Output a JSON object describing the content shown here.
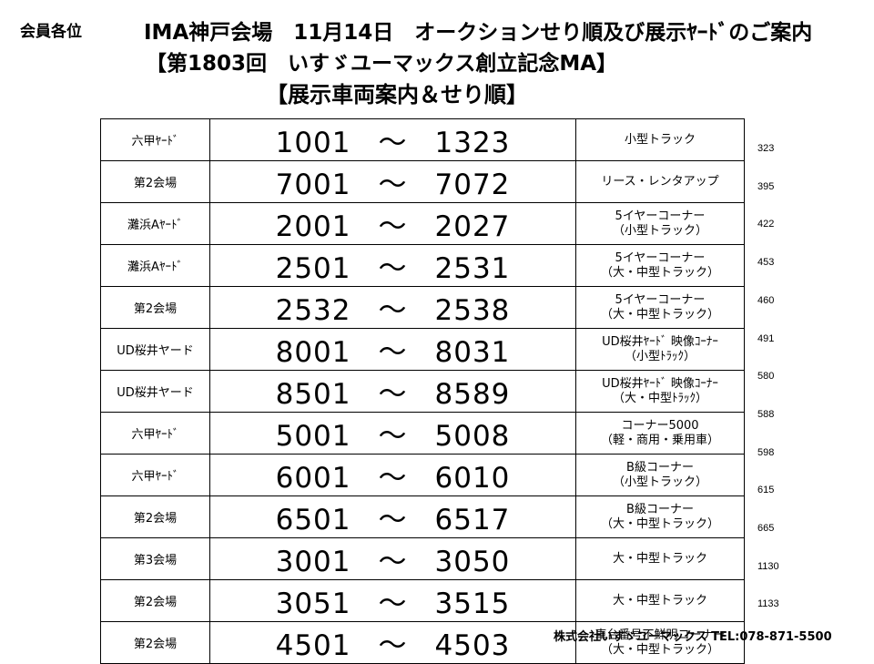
{
  "header": {
    "addressee": "会員各位",
    "title_line1": "IMA神戸会場　11月14日　オークションせり順及び展示ﾔｰﾄﾞのご案内",
    "title_line2": "【第1803回　いすゞユーマックス創立記念MA】",
    "title_line3": "【展示車両案内＆せり順】"
  },
  "range_separator": "～",
  "rows": [
    {
      "location": "六甲ﾔｰﾄﾞ",
      "from": "1001",
      "to": "1323",
      "category": [
        "小型トラック"
      ],
      "count": "323"
    },
    {
      "location": "第2会場",
      "from": "7001",
      "to": "7072",
      "category": [
        "リース・レンタアップ"
      ],
      "count": "395"
    },
    {
      "location": "灘浜Aﾔｰﾄﾞ",
      "from": "2001",
      "to": "2027",
      "category": [
        "5イヤーコーナー",
        "（小型トラック）"
      ],
      "count": "422"
    },
    {
      "location": "灘浜Aﾔｰﾄﾞ",
      "from": "2501",
      "to": "2531",
      "category": [
        "5イヤーコーナー",
        "（大・中型トラック）"
      ],
      "count": "453"
    },
    {
      "location": "第2会場",
      "from": "2532",
      "to": "2538",
      "category": [
        "5イヤーコーナー",
        "（大・中型トラック）"
      ],
      "count": "460"
    },
    {
      "location": "UD桜井ヤード",
      "from": "8001",
      "to": "8031",
      "category": [
        "UD桜井ﾔｰﾄﾞ 映像ｺｰﾅｰ",
        "（小型ﾄﾗｯｸ）"
      ],
      "count": "491"
    },
    {
      "location": "UD桜井ヤード",
      "from": "8501",
      "to": "8589",
      "category": [
        "UD桜井ﾔｰﾄﾞ 映像ｺｰﾅｰ",
        "（大・中型ﾄﾗｯｸ）"
      ],
      "count": "580"
    },
    {
      "location": "六甲ﾔｰﾄﾞ",
      "from": "5001",
      "to": "5008",
      "category": [
        "コーナー5000",
        "（軽・商用・乗用車）"
      ],
      "count": "588"
    },
    {
      "location": "六甲ﾔｰﾄﾞ",
      "from": "6001",
      "to": "6010",
      "category": [
        "B級コーナー",
        "（小型トラック）"
      ],
      "count": "598"
    },
    {
      "location": "第2会場",
      "from": "6501",
      "to": "6517",
      "category": [
        "B級コーナー",
        "（大・中型トラック）"
      ],
      "count": "615"
    },
    {
      "location": "第3会場",
      "from": "3001",
      "to": "3050",
      "category": [
        "大・中型トラック"
      ],
      "count": "665"
    },
    {
      "location": "第2会場",
      "from": "3051",
      "to": "3515",
      "category": [
        "大・中型トラック"
      ],
      "count": "1130"
    },
    {
      "location": "第2会場",
      "from": "4501",
      "to": "4503",
      "category": [
        "車台番号不鮮明コーナー",
        "（大・中型トラック）"
      ],
      "count": "1133"
    }
  ],
  "footer": "株式会社いすゞユーマックス TEL:078-871-5500"
}
